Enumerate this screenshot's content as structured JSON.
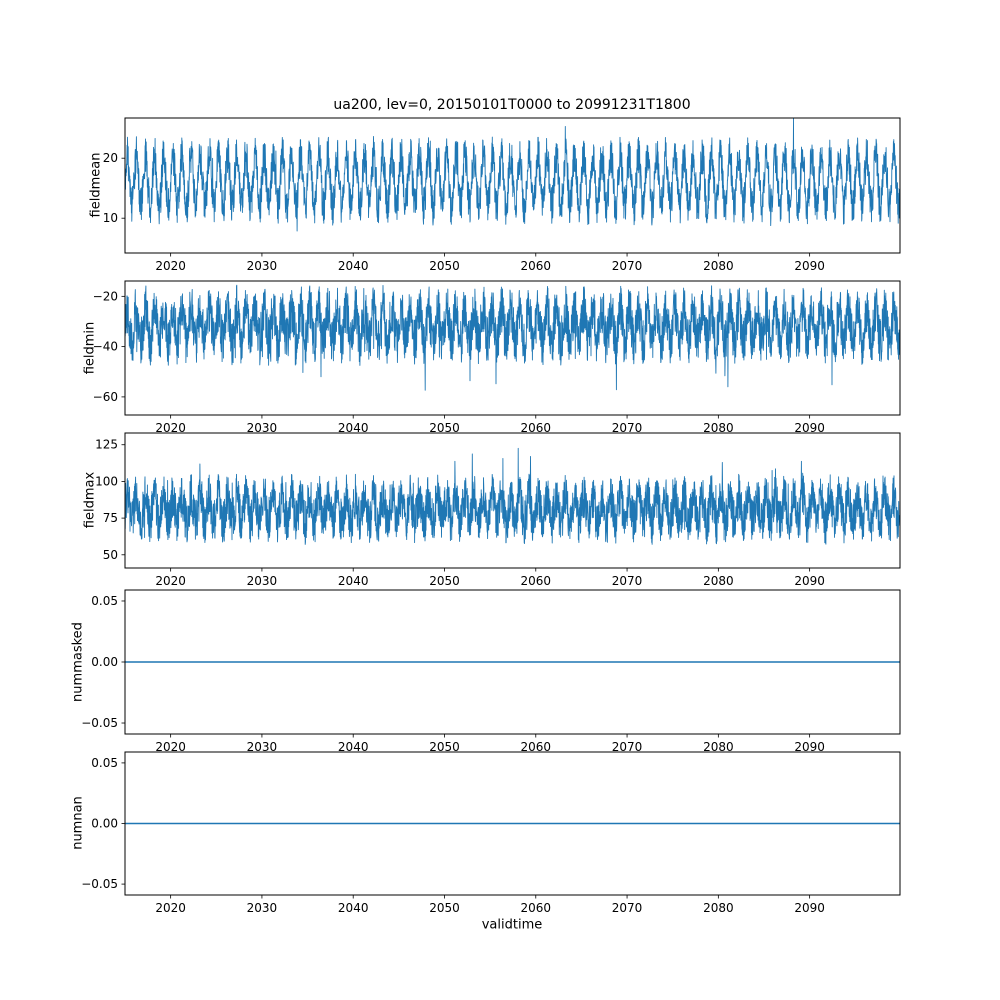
{
  "figure": {
    "title": "ua200, lev=0, 20150101T0000 to 20991231T1800",
    "xlabel": "validtime",
    "line_color": "#1f77b4",
    "background_color": "#ffffff",
    "axis_color": "#000000"
  },
  "chart_data": [
    {
      "type": "line",
      "name": "fieldmean",
      "ylabel": "fieldmean",
      "ylim": [
        4.2,
        26.7
      ],
      "yticks": [
        10,
        20
      ],
      "ytick_labels": [
        "10",
        "20"
      ],
      "xlim": [
        2015,
        2099.9
      ],
      "xticks": [
        2020,
        2030,
        2040,
        2050,
        2060,
        2070,
        2080,
        2090
      ],
      "series": {
        "kind": "noisy-seasonal",
        "mean": 16.2,
        "seasonal_amplitude": 4.3,
        "period_years": 1,
        "noise_amplitude": 3.2,
        "spikes": [
          {
            "prob": 0.002,
            "amp": 4.0,
            "dir": -1
          },
          {
            "prob": 0.004,
            "amp": 3.0,
            "dir": 1
          }
        ],
        "approx_min": 5.5,
        "approx_max": 26.5,
        "n_points": 3400,
        "seed": 11
      }
    },
    {
      "type": "line",
      "name": "fieldmin",
      "ylabel": "fieldmin",
      "ylim": [
        -67.2,
        -13.9
      ],
      "yticks": [
        -60,
        -40,
        -20
      ],
      "ytick_labels": [
        "−60",
        "−40",
        "−20"
      ],
      "xlim": [
        2015,
        2099.9
      ],
      "xticks": [
        2020,
        2030,
        2040,
        2050,
        2060,
        2070,
        2080,
        2090
      ],
      "series": {
        "kind": "noisy-seasonal",
        "mean": -31.5,
        "seasonal_amplitude": 6.5,
        "period_years": 1,
        "noise_amplitude": 9.5,
        "spikes": [
          {
            "prob": 0.012,
            "amp": 12.0,
            "dir": -1
          }
        ],
        "approx_min": -65,
        "approx_max": -14,
        "n_points": 3600,
        "seed": 22
      }
    },
    {
      "type": "line",
      "name": "fieldmax",
      "ylabel": "fieldmax",
      "ylim": [
        41,
        133
      ],
      "yticks": [
        50,
        75,
        100,
        125
      ],
      "ytick_labels": [
        "50",
        "75",
        "100",
        "125"
      ],
      "xlim": [
        2015,
        2099.9
      ],
      "xticks": [
        2020,
        2030,
        2040,
        2050,
        2060,
        2070,
        2080,
        2090
      ],
      "series": {
        "kind": "noisy-seasonal",
        "mean": 81,
        "seasonal_amplitude": 9,
        "period_years": 1,
        "noise_amplitude": 15,
        "spikes": [
          {
            "prob": 0.01,
            "amp": 16.0,
            "dir": 1
          },
          {
            "prob": 0.005,
            "amp": 10.0,
            "dir": -1
          }
        ],
        "approx_min": 46,
        "approx_max": 128,
        "n_points": 3600,
        "seed": 33
      }
    },
    {
      "type": "line",
      "name": "nummasked",
      "ylabel": "nummasked",
      "ylim": [
        -0.059,
        0.059
      ],
      "yticks": [
        -0.05,
        0,
        0.05
      ],
      "ytick_labels": [
        "−0.05",
        "0.00",
        "0.05"
      ],
      "xlim": [
        2015,
        2099.9
      ],
      "xticks": [
        2020,
        2030,
        2040,
        2050,
        2060,
        2070,
        2080,
        2090
      ],
      "series": {
        "kind": "constant",
        "value": 0
      }
    },
    {
      "type": "line",
      "name": "numnan",
      "ylabel": "numnan",
      "ylim": [
        -0.059,
        0.059
      ],
      "yticks": [
        -0.05,
        0,
        0.05
      ],
      "ytick_labels": [
        "−0.05",
        "0.00",
        "0.05"
      ],
      "xlim": [
        2015,
        2099.9
      ],
      "xticks": [
        2020,
        2030,
        2040,
        2050,
        2060,
        2070,
        2080,
        2090
      ],
      "series": {
        "kind": "constant",
        "value": 0
      }
    }
  ]
}
